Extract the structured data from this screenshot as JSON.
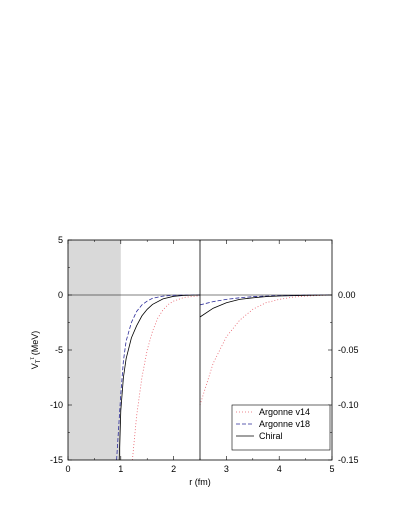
{
  "chart_data": {
    "type": "line",
    "xlabel": "r (fm)",
    "ylabel_main": "V",
    "ylabel_sub": "T",
    "ylabel_sup": "τ",
    "ylabel_unit": "(MeV)",
    "xlim": [
      0,
      5
    ],
    "ylim": [
      -15,
      5
    ],
    "x_ticks": [
      "0",
      "1",
      "2",
      "3",
      "4",
      "5"
    ],
    "y_ticks": [
      "5",
      "0",
      "-5",
      "-10",
      "-15"
    ],
    "shaded_region_x": [
      0,
      1
    ],
    "inset": {
      "xlim": [
        2.5,
        5
      ],
      "ylim": [
        -0.15,
        0.0
      ],
      "y_ticks": [
        "0.00",
        "-0.05",
        "-0.10",
        "-0.15"
      ]
    },
    "legend_position": "bottom-right",
    "series": [
      {
        "name": "Argonne v14",
        "color": "#e8606b",
        "dash": "1,2",
        "main": {
          "x": [
            1.22,
            1.3,
            1.4,
            1.5,
            1.6,
            1.7,
            1.8,
            1.9,
            2.0,
            2.2,
            2.5
          ],
          "y": [
            -15,
            -11.0,
            -7.5,
            -5.0,
            -3.3,
            -2.1,
            -1.35,
            -0.85,
            -0.55,
            -0.22,
            -0.06
          ]
        },
        "inset": {
          "x": [
            2.5,
            2.75,
            3.0,
            3.25,
            3.5,
            3.75,
            4.0,
            4.25,
            4.5,
            4.75,
            5.0
          ],
          "y": [
            -0.1,
            -0.062,
            -0.038,
            -0.023,
            -0.013,
            -0.007,
            -0.004,
            -0.002,
            -0.001,
            -0.0005,
            0.0
          ]
        }
      },
      {
        "name": "Argonne v18",
        "color": "#2b2b99",
        "dash": "4,2",
        "main": {
          "x": [
            0.92,
            0.96,
            1.0,
            1.05,
            1.1,
            1.2,
            1.3,
            1.4,
            1.5,
            1.6,
            1.8,
            2.0,
            2.5
          ],
          "y": [
            -15,
            -12.0,
            -9.0,
            -6.0,
            -4.2,
            -2.5,
            -1.5,
            -0.9,
            -0.55,
            -0.3,
            -0.1,
            -0.03,
            0.0
          ]
        },
        "inset": {
          "x": [
            2.5,
            2.75,
            3.0,
            3.25,
            3.5,
            3.75,
            4.0,
            4.5,
            5.0
          ],
          "y": [
            -0.009,
            -0.006,
            -0.004,
            -0.0025,
            -0.0015,
            -0.001,
            -0.0006,
            -0.0002,
            0.0
          ]
        }
      },
      {
        "name": "Chiral",
        "color": "#000000",
        "dash": "",
        "main": {
          "x": [
            0.97,
            1.0,
            1.05,
            1.1,
            1.2,
            1.3,
            1.4,
            1.5,
            1.6,
            1.8,
            2.0,
            2.2,
            2.5
          ],
          "y": [
            -15,
            -10.5,
            -7.5,
            -5.8,
            -3.9,
            -2.8,
            -1.9,
            -1.3,
            -0.85,
            -0.35,
            -0.12,
            -0.04,
            0.0
          ]
        },
        "inset": {
          "x": [
            2.5,
            2.75,
            3.0,
            3.25,
            3.5,
            3.75,
            4.0,
            4.5,
            5.0
          ],
          "y": [
            -0.02,
            -0.012,
            -0.007,
            -0.004,
            -0.0025,
            -0.0015,
            -0.0009,
            -0.0003,
            0.0
          ]
        }
      }
    ]
  }
}
